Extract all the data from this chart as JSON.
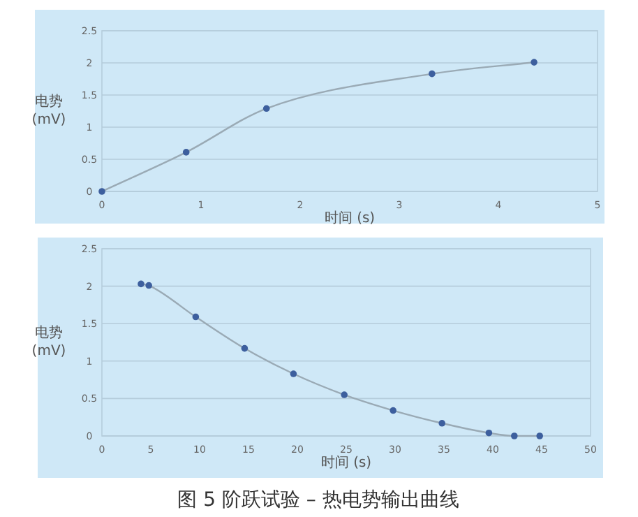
{
  "chart_data": [
    {
      "type": "line",
      "x": [
        0,
        0.85,
        1.66,
        3.33,
        4.36
      ],
      "series": [
        {
          "color": "#3d5f9e",
          "values": [
            0,
            0.61,
            1.29,
            1.83,
            2.01
          ]
        }
      ],
      "marker": "circle",
      "xlim": [
        0,
        5
      ],
      "ylim": [
        0,
        2.5
      ],
      "xticks": [
        0,
        1,
        2,
        3,
        4,
        5
      ],
      "yticks": [
        0,
        0.5,
        1,
        1.5,
        2,
        2.5
      ],
      "grid": "y",
      "xlabel": "时间 (s)",
      "ylabel": "电势 (mV)"
    },
    {
      "type": "line",
      "x": [
        4,
        4.8,
        9.6,
        14.6,
        19.6,
        24.8,
        29.8,
        34.8,
        39.6,
        42.2,
        44.8
      ],
      "series": [
        {
          "color": "#3d5f9e",
          "values": [
            2.03,
            2.01,
            1.59,
            1.17,
            0.83,
            0.55,
            0.34,
            0.17,
            0.04,
            0,
            0
          ]
        }
      ],
      "marker": "circle",
      "xlim": [
        0,
        50
      ],
      "ylim": [
        0,
        2.5
      ],
      "xticks": [
        0,
        5,
        10,
        15,
        20,
        25,
        30,
        35,
        40,
        45,
        50
      ],
      "yticks": [
        0,
        0.5,
        1,
        1.5,
        2,
        2.5
      ],
      "grid": "y",
      "xlabel": "时间 (s)",
      "ylabel": "电势 (mV)",
      "annotations": [
        "图 5 阶跃试验 – 热电势输出曲线"
      ]
    }
  ]
}
